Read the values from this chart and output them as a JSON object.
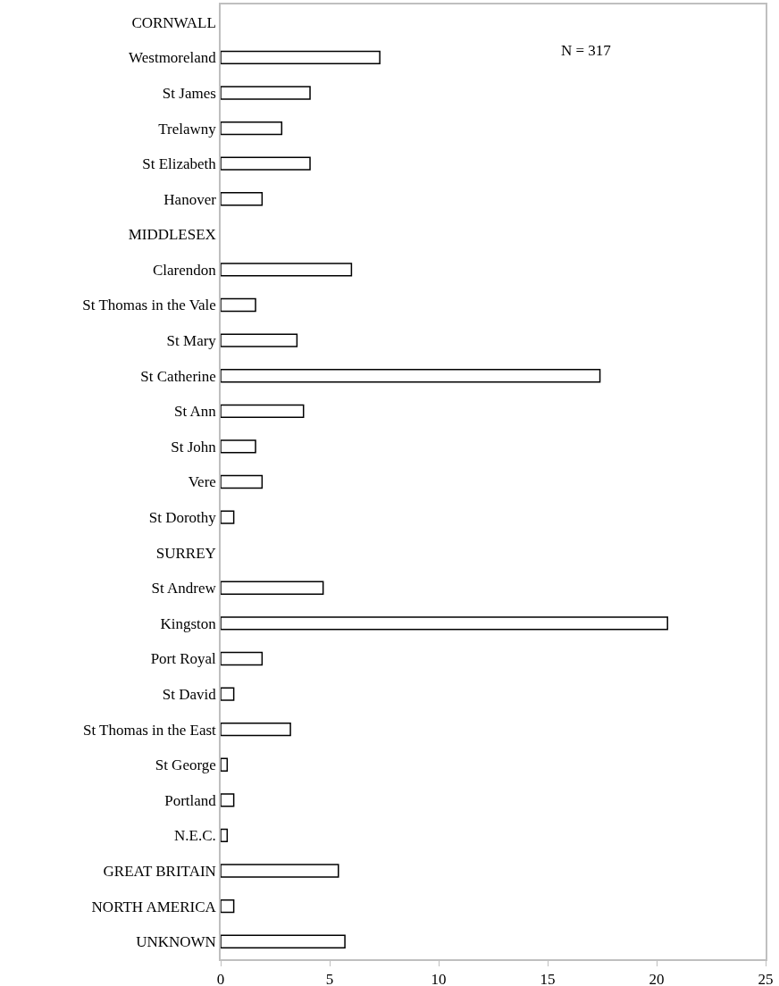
{
  "chart_data": {
    "type": "bar",
    "orientation": "horizontal",
    "categories": [
      "CORNWALL",
      "Westmoreland",
      "St James",
      "Trelawny",
      "St Elizabeth",
      "Hanover",
      "MIDDLESEX",
      "Clarendon",
      "St Thomas in the Vale",
      "St Mary",
      "St Catherine",
      "St Ann",
      "St John",
      "Vere",
      "St Dorothy",
      "SURREY",
      "St Andrew",
      "Kingston",
      "Port Royal",
      "St David",
      "St Thomas in the East",
      "St George",
      "Portland",
      "N.E.C.",
      "GREAT BRITAIN",
      "NORTH AMERICA",
      "UNKNOWN"
    ],
    "values": [
      null,
      7.3,
      4.1,
      2.8,
      4.1,
      1.9,
      null,
      6.0,
      1.6,
      3.5,
      17.4,
      3.8,
      1.6,
      1.9,
      0.6,
      null,
      4.7,
      20.5,
      1.9,
      0.6,
      3.2,
      0.3,
      0.6,
      0.3,
      5.4,
      0.6,
      5.7
    ],
    "color": "#ffffff",
    "xlim": [
      0,
      25
    ],
    "xticks": [
      0,
      5,
      10,
      15,
      20,
      25
    ],
    "grid": false,
    "annotations": [
      "N = 317"
    ]
  }
}
